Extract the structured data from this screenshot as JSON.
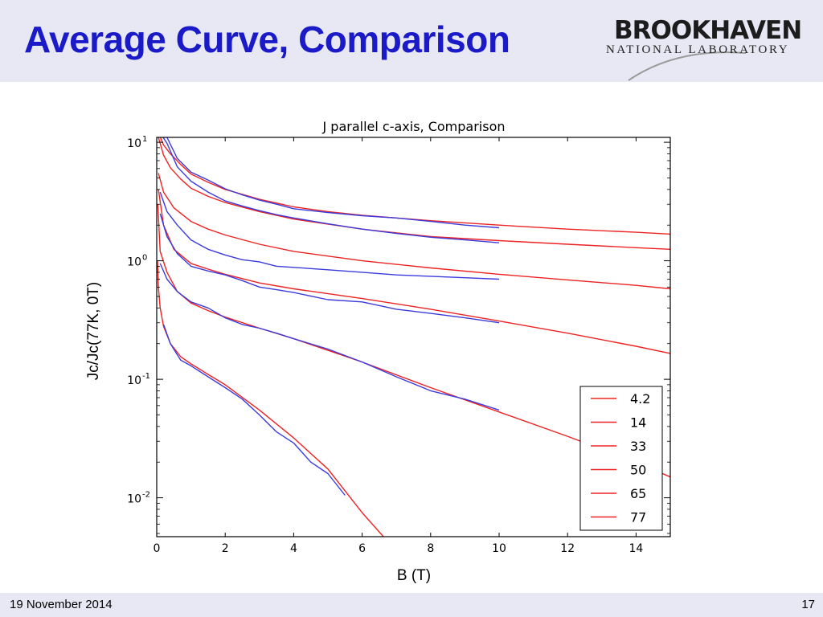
{
  "slide": {
    "title": "Average Curve, Comparison",
    "footer_date": "19 November 2014",
    "page_number": "17"
  },
  "logo": {
    "name": "BROOKHAVEN",
    "subtitle": "NATIONAL LABORATORY"
  },
  "colors": {
    "title": "#1a1ac8",
    "header_band": "#e7e8f4",
    "model_red": "#ee2222",
    "measured_blue": "#3b3bdd"
  },
  "chart_data": {
    "type": "line",
    "title": "J parallel c-axis, Comparison",
    "xlabel": "B (T)",
    "ylabel": "Jc/Jc(77K, 0T)",
    "xlim": [
      0,
      15
    ],
    "ylim": [
      0.0047,
      11
    ],
    "yscale": "log",
    "grid": false,
    "legend_position": "bottom-right",
    "x_ticks": [
      "0",
      "2",
      "4",
      "6",
      "8",
      "10",
      "12",
      "14"
    ],
    "y_ticks": [
      {
        "value": 10,
        "base": "10",
        "exp": "1"
      },
      {
        "value": 1,
        "base": "10",
        "exp": "0"
      },
      {
        "value": 0.1,
        "base": "10",
        "exp": "-1"
      },
      {
        "value": 0.01,
        "base": "10",
        "exp": "-2"
      }
    ],
    "series": [
      {
        "name": "4.2",
        "color": "#ee2222",
        "x": [
          0.05,
          0.2,
          0.4,
          0.7,
          1,
          1.5,
          2,
          3,
          4,
          5,
          6,
          8,
          10,
          12,
          14,
          15
        ],
        "y": [
          12,
          9.5,
          8.0,
          6.5,
          5.4,
          4.6,
          4.0,
          3.3,
          2.85,
          2.6,
          2.42,
          2.18,
          2.0,
          1.85,
          1.74,
          1.68
        ]
      },
      {
        "name": "14",
        "color": "#ee2222",
        "x": [
          0.05,
          0.2,
          0.4,
          0.7,
          1,
          1.5,
          2,
          3,
          4,
          6,
          8,
          10,
          12,
          14,
          15
        ],
        "y": [
          11,
          7.8,
          6.1,
          4.9,
          4.1,
          3.5,
          3.1,
          2.6,
          2.25,
          1.85,
          1.6,
          1.48,
          1.38,
          1.29,
          1.25
        ]
      },
      {
        "name": "33",
        "color": "#ee2222",
        "x": [
          0.05,
          0.2,
          0.5,
          1,
          1.5,
          2,
          3,
          4,
          6,
          8,
          10,
          12,
          14,
          15
        ],
        "y": [
          5.5,
          3.8,
          2.8,
          2.15,
          1.85,
          1.65,
          1.38,
          1.2,
          1.0,
          0.87,
          0.77,
          0.69,
          0.62,
          0.58
        ]
      },
      {
        "name": "50",
        "color": "#ee2222",
        "x": [
          0.05,
          0.2,
          0.5,
          1,
          1.5,
          2,
          3,
          4,
          6,
          8,
          10,
          12,
          14,
          15
        ],
        "y": [
          4.0,
          2.0,
          1.25,
          0.95,
          0.85,
          0.77,
          0.65,
          0.58,
          0.48,
          0.39,
          0.31,
          0.245,
          0.19,
          0.165
        ]
      },
      {
        "name": "65",
        "color": "#ee2222",
        "x": [
          0.03,
          0.1,
          0.3,
          0.6,
          1,
          1.5,
          2,
          3,
          4,
          6,
          8,
          10,
          12,
          14,
          15
        ],
        "y": [
          3.0,
          1.2,
          0.8,
          0.55,
          0.44,
          0.38,
          0.335,
          0.27,
          0.22,
          0.14,
          0.085,
          0.053,
          0.033,
          0.02,
          0.015
        ]
      },
      {
        "name": "77",
        "color": "#ee2222",
        "x": [
          0.02,
          0.05,
          0.1,
          0.2,
          0.4,
          0.7,
          1,
          1.5,
          2,
          3,
          4,
          5,
          6,
          6.65
        ],
        "y": [
          1.0,
          0.6,
          0.4,
          0.28,
          0.2,
          0.155,
          0.135,
          0.11,
          0.09,
          0.055,
          0.032,
          0.0175,
          0.0075,
          0.0046
        ]
      },
      {
        "name": "",
        "color": "#3b3bdd",
        "x": [
          0.3,
          0.6,
          1,
          1.5,
          2,
          2.5,
          3,
          3.5,
          4,
          5,
          6,
          7,
          8,
          9,
          10
        ],
        "y": [
          11,
          7.3,
          5.6,
          4.8,
          4.05,
          3.6,
          3.25,
          3.0,
          2.75,
          2.55,
          2.4,
          2.3,
          2.15,
          2.0,
          1.9
        ]
      },
      {
        "name": "",
        "color": "#3b3bdd",
        "x": [
          0.1,
          0.3,
          0.6,
          1,
          1.5,
          2,
          2.5,
          3,
          3.5,
          4,
          5,
          6,
          7,
          8,
          9,
          10
        ],
        "y": [
          12,
          9.8,
          6.2,
          4.7,
          3.8,
          3.2,
          2.9,
          2.65,
          2.45,
          2.3,
          2.05,
          1.85,
          1.7,
          1.58,
          1.5,
          1.42
        ]
      },
      {
        "name": "",
        "color": "#3b3bdd",
        "x": [
          0.1,
          0.3,
          0.6,
          1,
          1.5,
          2,
          2.5,
          3,
          3.5,
          4,
          5,
          6,
          7,
          8,
          9,
          10
        ],
        "y": [
          3.8,
          2.6,
          2.0,
          1.5,
          1.25,
          1.12,
          1.02,
          0.98,
          0.9,
          0.88,
          0.84,
          0.8,
          0.76,
          0.74,
          0.72,
          0.7
        ]
      },
      {
        "name": "",
        "color": "#3b3bdd",
        "x": [
          0.1,
          0.3,
          0.6,
          1,
          1.5,
          2,
          2.5,
          3,
          3.5,
          4,
          5,
          6,
          7,
          8,
          9,
          10
        ],
        "y": [
          2.5,
          1.6,
          1.15,
          0.9,
          0.82,
          0.76,
          0.68,
          0.6,
          0.57,
          0.54,
          0.47,
          0.45,
          0.39,
          0.36,
          0.33,
          0.3
        ]
      },
      {
        "name": "",
        "color": "#3b3bdd",
        "x": [
          0.1,
          0.3,
          0.6,
          1,
          1.5,
          2,
          2.5,
          3,
          3.5,
          4,
          5,
          6,
          7,
          8,
          9,
          10
        ],
        "y": [
          0.95,
          0.7,
          0.55,
          0.45,
          0.4,
          0.33,
          0.29,
          0.27,
          0.245,
          0.22,
          0.18,
          0.14,
          0.105,
          0.08,
          0.068,
          0.055
        ]
      },
      {
        "name": "",
        "color": "#3b3bdd",
        "x": [
          0.2,
          0.4,
          0.7,
          1,
          1.5,
          2,
          2.5,
          3,
          3.5,
          4,
          4.5,
          5,
          5.5
        ],
        "y": [
          0.29,
          0.2,
          0.145,
          0.13,
          0.105,
          0.085,
          0.068,
          0.05,
          0.036,
          0.029,
          0.02,
          0.016,
          0.0105
        ]
      }
    ]
  }
}
